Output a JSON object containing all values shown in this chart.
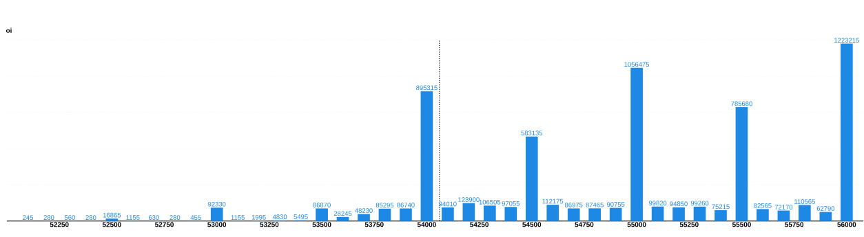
{
  "chart_data": {
    "type": "bar",
    "ylabel": "oi",
    "x": [
      52100,
      52200,
      52300,
      52400,
      52500,
      52600,
      52700,
      52800,
      52900,
      53000,
      53100,
      53200,
      53300,
      53400,
      53500,
      53600,
      53700,
      53800,
      53900,
      54000,
      54100,
      54200,
      54300,
      54400,
      54500,
      54600,
      54700,
      54800,
      54900,
      55000,
      55100,
      55200,
      55300,
      55400,
      55500,
      55600,
      55700,
      55800,
      55900,
      56000
    ],
    "values": [
      245,
      280,
      560,
      280,
      16865,
      1155,
      630,
      280,
      455,
      92330,
      1155,
      1995,
      4830,
      5495,
      86870,
      28245,
      48230,
      85295,
      86740,
      895315,
      94010,
      123900,
      106505,
      97055,
      583135,
      112175,
      86975,
      87465,
      90755,
      1056475,
      99820,
      94850,
      99260,
      75215,
      785680,
      82565,
      72170,
      110565,
      62790,
      1223215
    ],
    "value_labels": [
      "245",
      "280",
      "560",
      "280",
      "16865",
      "1155",
      "630",
      "280",
      "455",
      "92330",
      "1155",
      "1995",
      "4830",
      "5495",
      "86870",
      "28245",
      "48230",
      "85295",
      "86740",
      "895315",
      "94010",
      "123900",
      "106505",
      "97055",
      "583135",
      "112175",
      "86975",
      "87465",
      "90755",
      "1056475",
      "99820",
      "94850",
      "99260",
      "75215",
      "785680",
      "82565",
      "72170",
      "110565",
      "62790",
      "1223215"
    ],
    "color": "#1e88e5",
    "xlim": [
      52000,
      56080
    ],
    "xticks": [
      52250,
      52500,
      52750,
      53000,
      53250,
      53500,
      53750,
      54000,
      54250,
      54500,
      54750,
      55000,
      55250,
      55500,
      55750,
      56000
    ],
    "ylim": [
      0,
      1250000
    ],
    "yticks": [
      {
        "value": 0,
        "label": null
      },
      {
        "value": 250000,
        "label": null
      },
      {
        "value": 500000,
        "label": null
      },
      {
        "value": 750000,
        "label": null
      },
      {
        "value": 1000000,
        "label": null
      },
      {
        "value": 1250000,
        "label": null
      }
    ],
    "tick_labels": "x",
    "grid": "y",
    "ref_lines": [
      {
        "axis": "x",
        "value": 54060,
        "line_style": "dotted",
        "color": "#000000"
      }
    ]
  }
}
